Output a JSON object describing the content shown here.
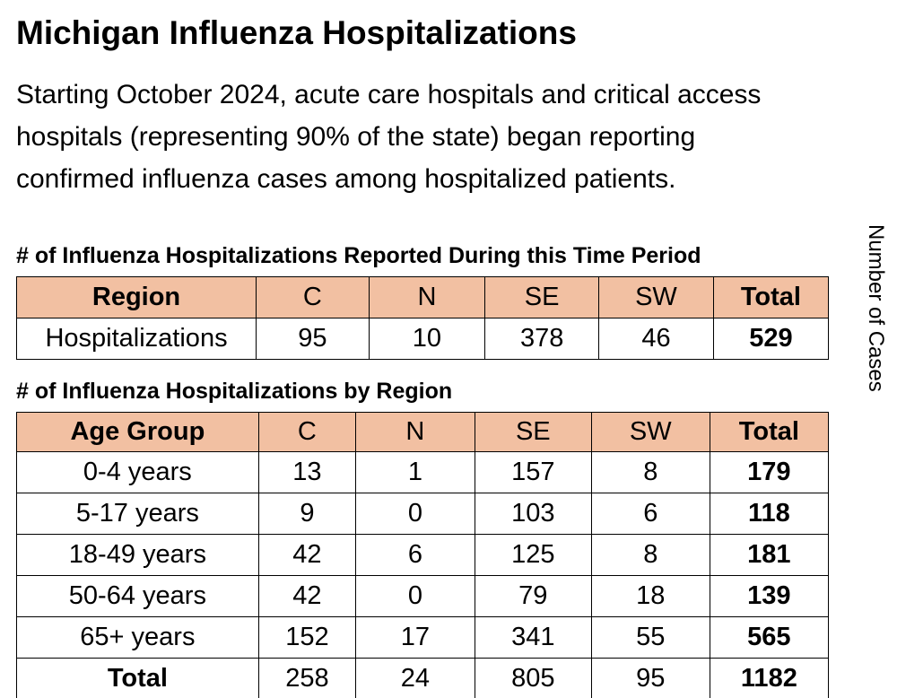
{
  "header": {
    "title": "Michigan Influenza Hospitalizations",
    "description": [
      "Starting October 2024, acute care hospitals and critical access",
      "hospitals (representing 90% of the state) began reporting",
      "confirmed influenza cases among hospitalized patients."
    ]
  },
  "side_label": "Number of Cases",
  "tables": [
    {
      "caption": "# of Influenza Hospitalizations Reported During this Time Period",
      "columns": [
        "Region",
        "C",
        "N",
        "SE",
        "SW",
        "Total"
      ],
      "rows": [
        [
          "Hospitalizations",
          95,
          10,
          378,
          46,
          529
        ]
      ]
    },
    {
      "caption": "# of Influenza Hospitalizations by Region",
      "columns": [
        "Age Group",
        "C",
        "N",
        "SE",
        "SW",
        "Total"
      ],
      "rows": [
        [
          "0-4 years",
          13,
          1,
          157,
          8,
          179
        ],
        [
          "5-17 years",
          9,
          0,
          103,
          6,
          118
        ],
        [
          "18-49 years",
          42,
          6,
          125,
          8,
          181
        ],
        [
          "50-64 years",
          42,
          0,
          79,
          18,
          139
        ],
        [
          "65+ years",
          152,
          17,
          341,
          55,
          565
        ],
        [
          "Total",
          258,
          24,
          805,
          95,
          1182
        ]
      ]
    }
  ]
}
